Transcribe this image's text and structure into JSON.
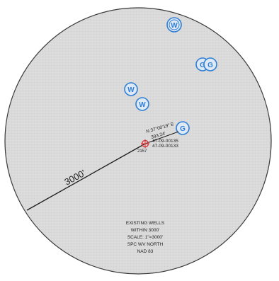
{
  "colors": {
    "page_background": "#ffffff",
    "circle_fill": "#d9d9d9",
    "circle_stroke": "#3a3a3a",
    "well_symbol": "#2f7fd6",
    "site_marker": "#d94040",
    "ink": "#222222"
  },
  "radius_label": "3000'",
  "site": {
    "bearing_line1": "N 37°00'19\" E",
    "bearing_line2": "393.24'",
    "permit_1": "47-09-00135",
    "permit_2": "47-09-00133",
    "small_label": "2157"
  },
  "wells": [
    {
      "letter": "W",
      "symbol": "water-well-icon"
    },
    {
      "letter": "G",
      "symbol": "gas-well-icon"
    },
    {
      "letter": "G",
      "symbol": "gas-well-icon"
    },
    {
      "letter": "W",
      "symbol": "water-well-icon"
    },
    {
      "letter": "W",
      "symbol": "water-well-icon"
    },
    {
      "letter": "G",
      "symbol": "gas-well-icon"
    }
  ],
  "legend": {
    "line1": "EXISTING WELLS",
    "line2": "WITHIN 3000'",
    "line3": "SCALE: 1\"=3000'",
    "line4": "SPC WV NORTH",
    "line5": "NAD 83"
  }
}
